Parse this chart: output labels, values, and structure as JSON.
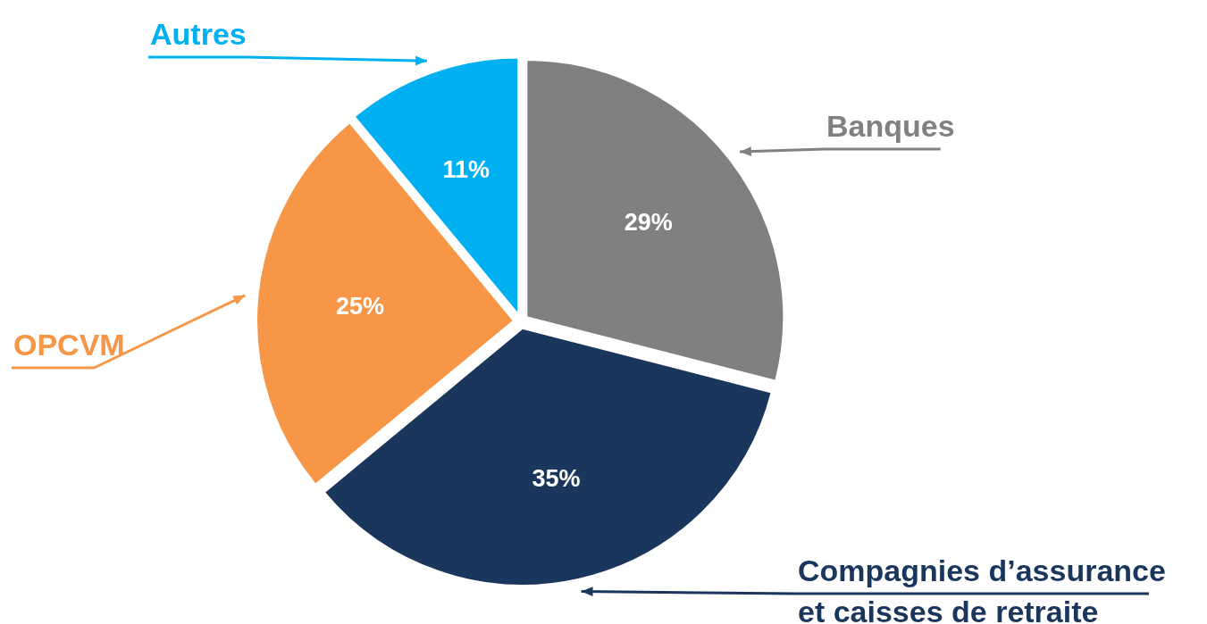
{
  "chart_data": {
    "type": "pie",
    "categories": [
      "Banques",
      "Compagnies d’assurance et caisses de retraite",
      "OPCVM",
      "Autres"
    ],
    "values": [
      29,
      35,
      25,
      11
    ],
    "colors": [
      "#808080",
      "#1b365d",
      "#f79646",
      "#00b0f0"
    ],
    "value_labels": [
      "29%",
      "35%",
      "25%",
      "11%"
    ]
  }
}
